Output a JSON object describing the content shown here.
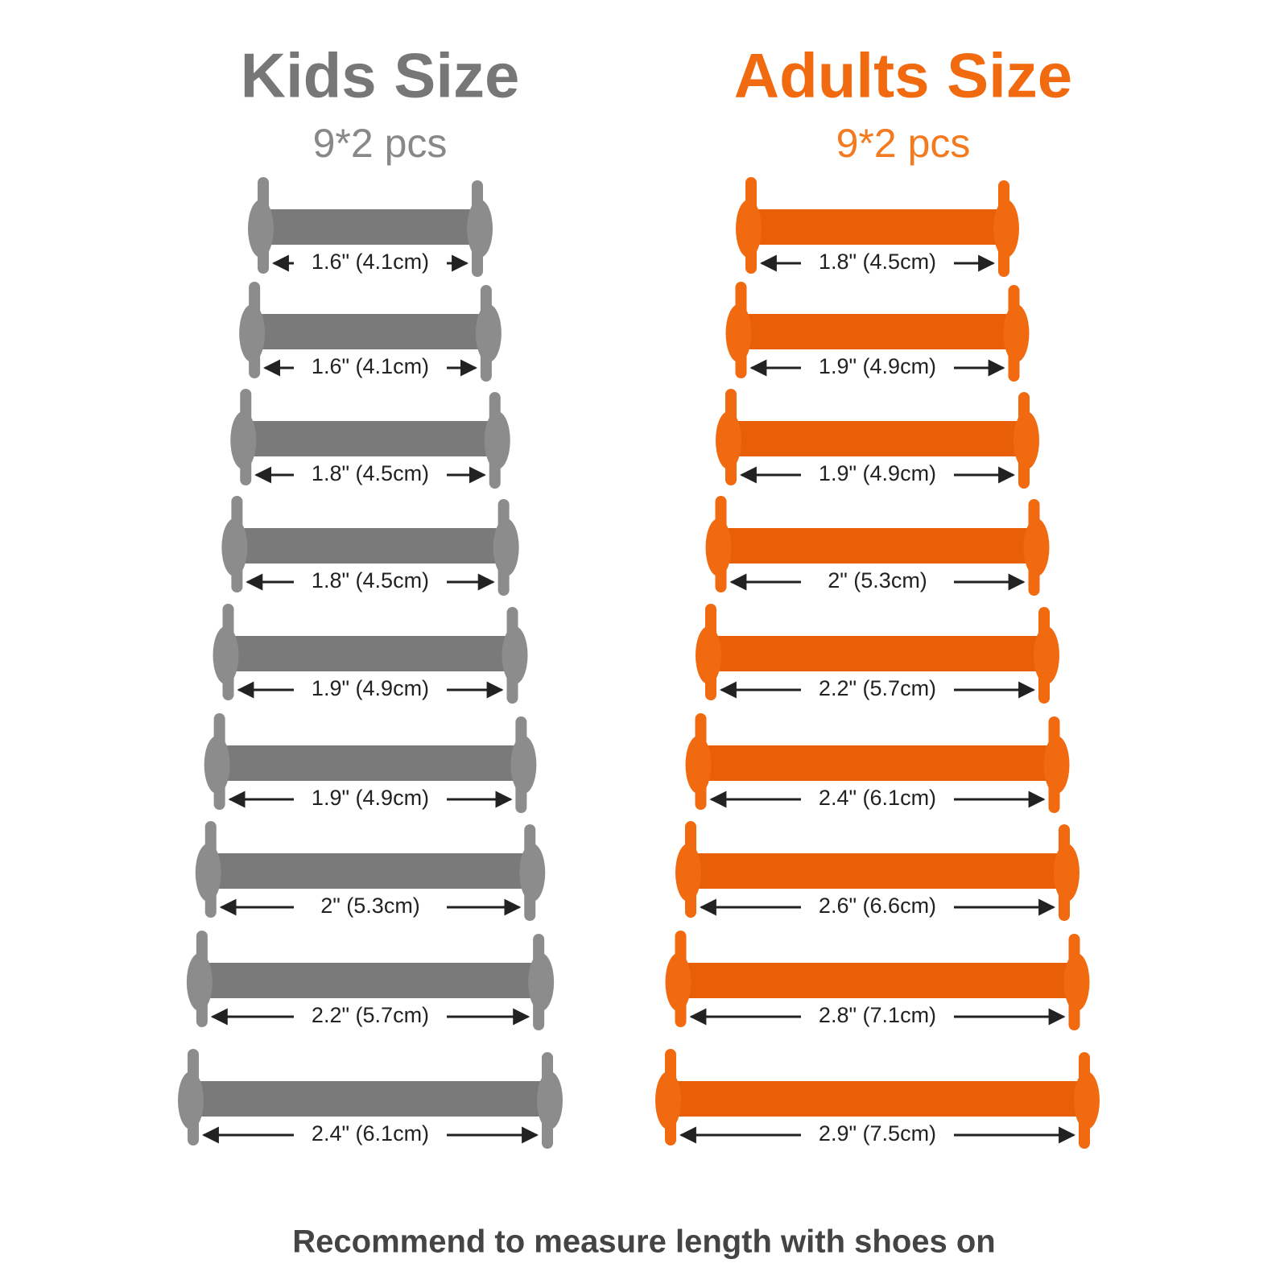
{
  "kids": {
    "title": "Kids Size",
    "subtitle": "9*2 pcs",
    "items": [
      "1.6\" (4.1cm)",
      "1.6\" (4.1cm)",
      "1.8\" (4.5cm)",
      "1.8\" (4.5cm)",
      "1.9\" (4.9cm)",
      "1.9\" (4.9cm)",
      "2\" (5.3cm)",
      "2.2\" (5.7cm)",
      "2.4\" (6.1cm)"
    ]
  },
  "adults": {
    "title": "Adults Size",
    "subtitle": "9*2 pcs",
    "items": [
      "1.8\" (4.5cm)",
      "1.9\" (4.9cm)",
      "1.9\" (4.9cm)",
      "2\" (5.3cm)",
      "2.2\" (5.7cm)",
      "2.4\" (6.1cm)",
      "2.6\" (6.6cm)",
      "2.8\" (7.1cm)",
      "2.9\" (7.5cm)"
    ]
  },
  "footer": "Recommend to measure length with shoes on"
}
